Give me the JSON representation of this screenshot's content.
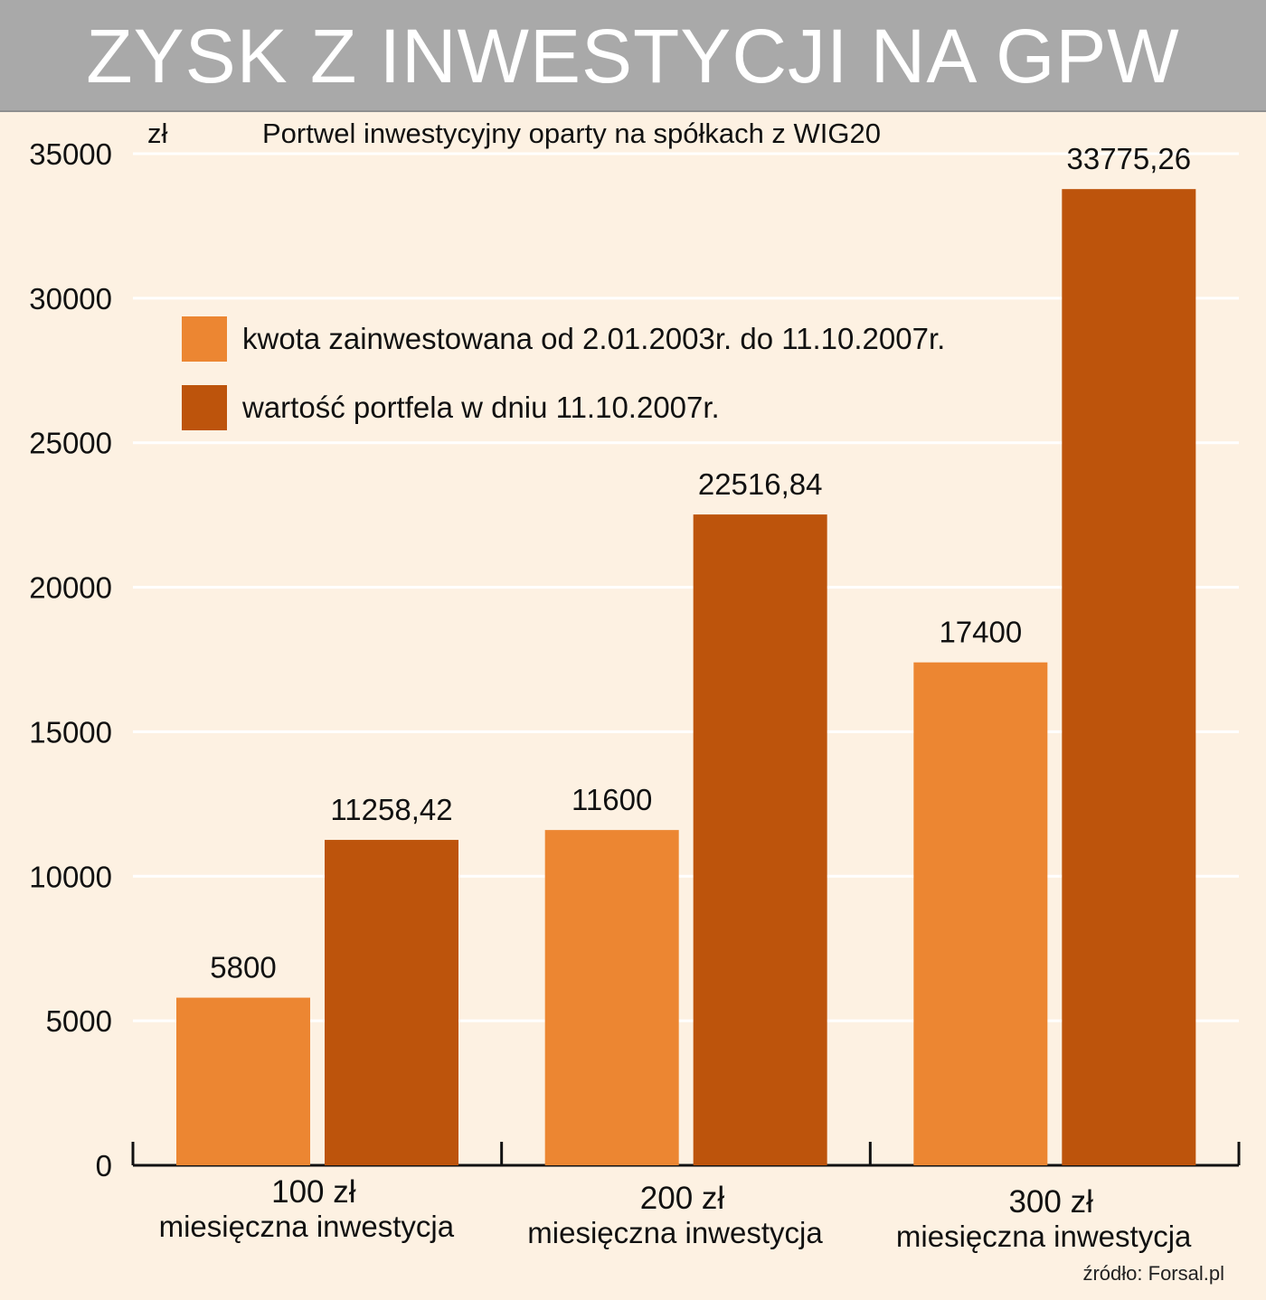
{
  "header": {
    "title": "ZYSK Z INWESTYCJI NA GPW"
  },
  "source": "źródło: Forsal.pl",
  "colors": {
    "series1": "#ec8632",
    "series2": "#bd540c",
    "background": "#fdf1e2",
    "banner": "#a9a9a9",
    "grid": "#ffffff"
  },
  "chart_data": {
    "type": "bar",
    "title": "Portwel inwestycyjny oparty na spółkach z WIG20",
    "ylabel": "zł",
    "xlabel": "",
    "ylim": [
      0,
      35000
    ],
    "yticks": [
      0,
      5000,
      10000,
      15000,
      20000,
      25000,
      30000,
      35000
    ],
    "grid": true,
    "legend_position": "top-left",
    "categories": [
      [
        "100 zł",
        "miesięczna inwestycja"
      ],
      [
        "200 zł",
        "miesięczna inwestycja"
      ],
      [
        "300 zł",
        "miesięczna inwestycja"
      ]
    ],
    "series": [
      {
        "name": "kwota zainwestowana od 2.01.2003r. do 11.10.2007r.",
        "color": "#ec8632",
        "values": [
          5800,
          11600,
          17400
        ],
        "labels": [
          "5800",
          "11600",
          "17400"
        ]
      },
      {
        "name": "wartość portfela w dniu 11.10.2007r.",
        "color": "#bd540c",
        "values": [
          11258.42,
          22516.84,
          33775.26
        ],
        "labels": [
          "11258,42",
          "22516,84",
          "33775,26"
        ]
      }
    ]
  }
}
